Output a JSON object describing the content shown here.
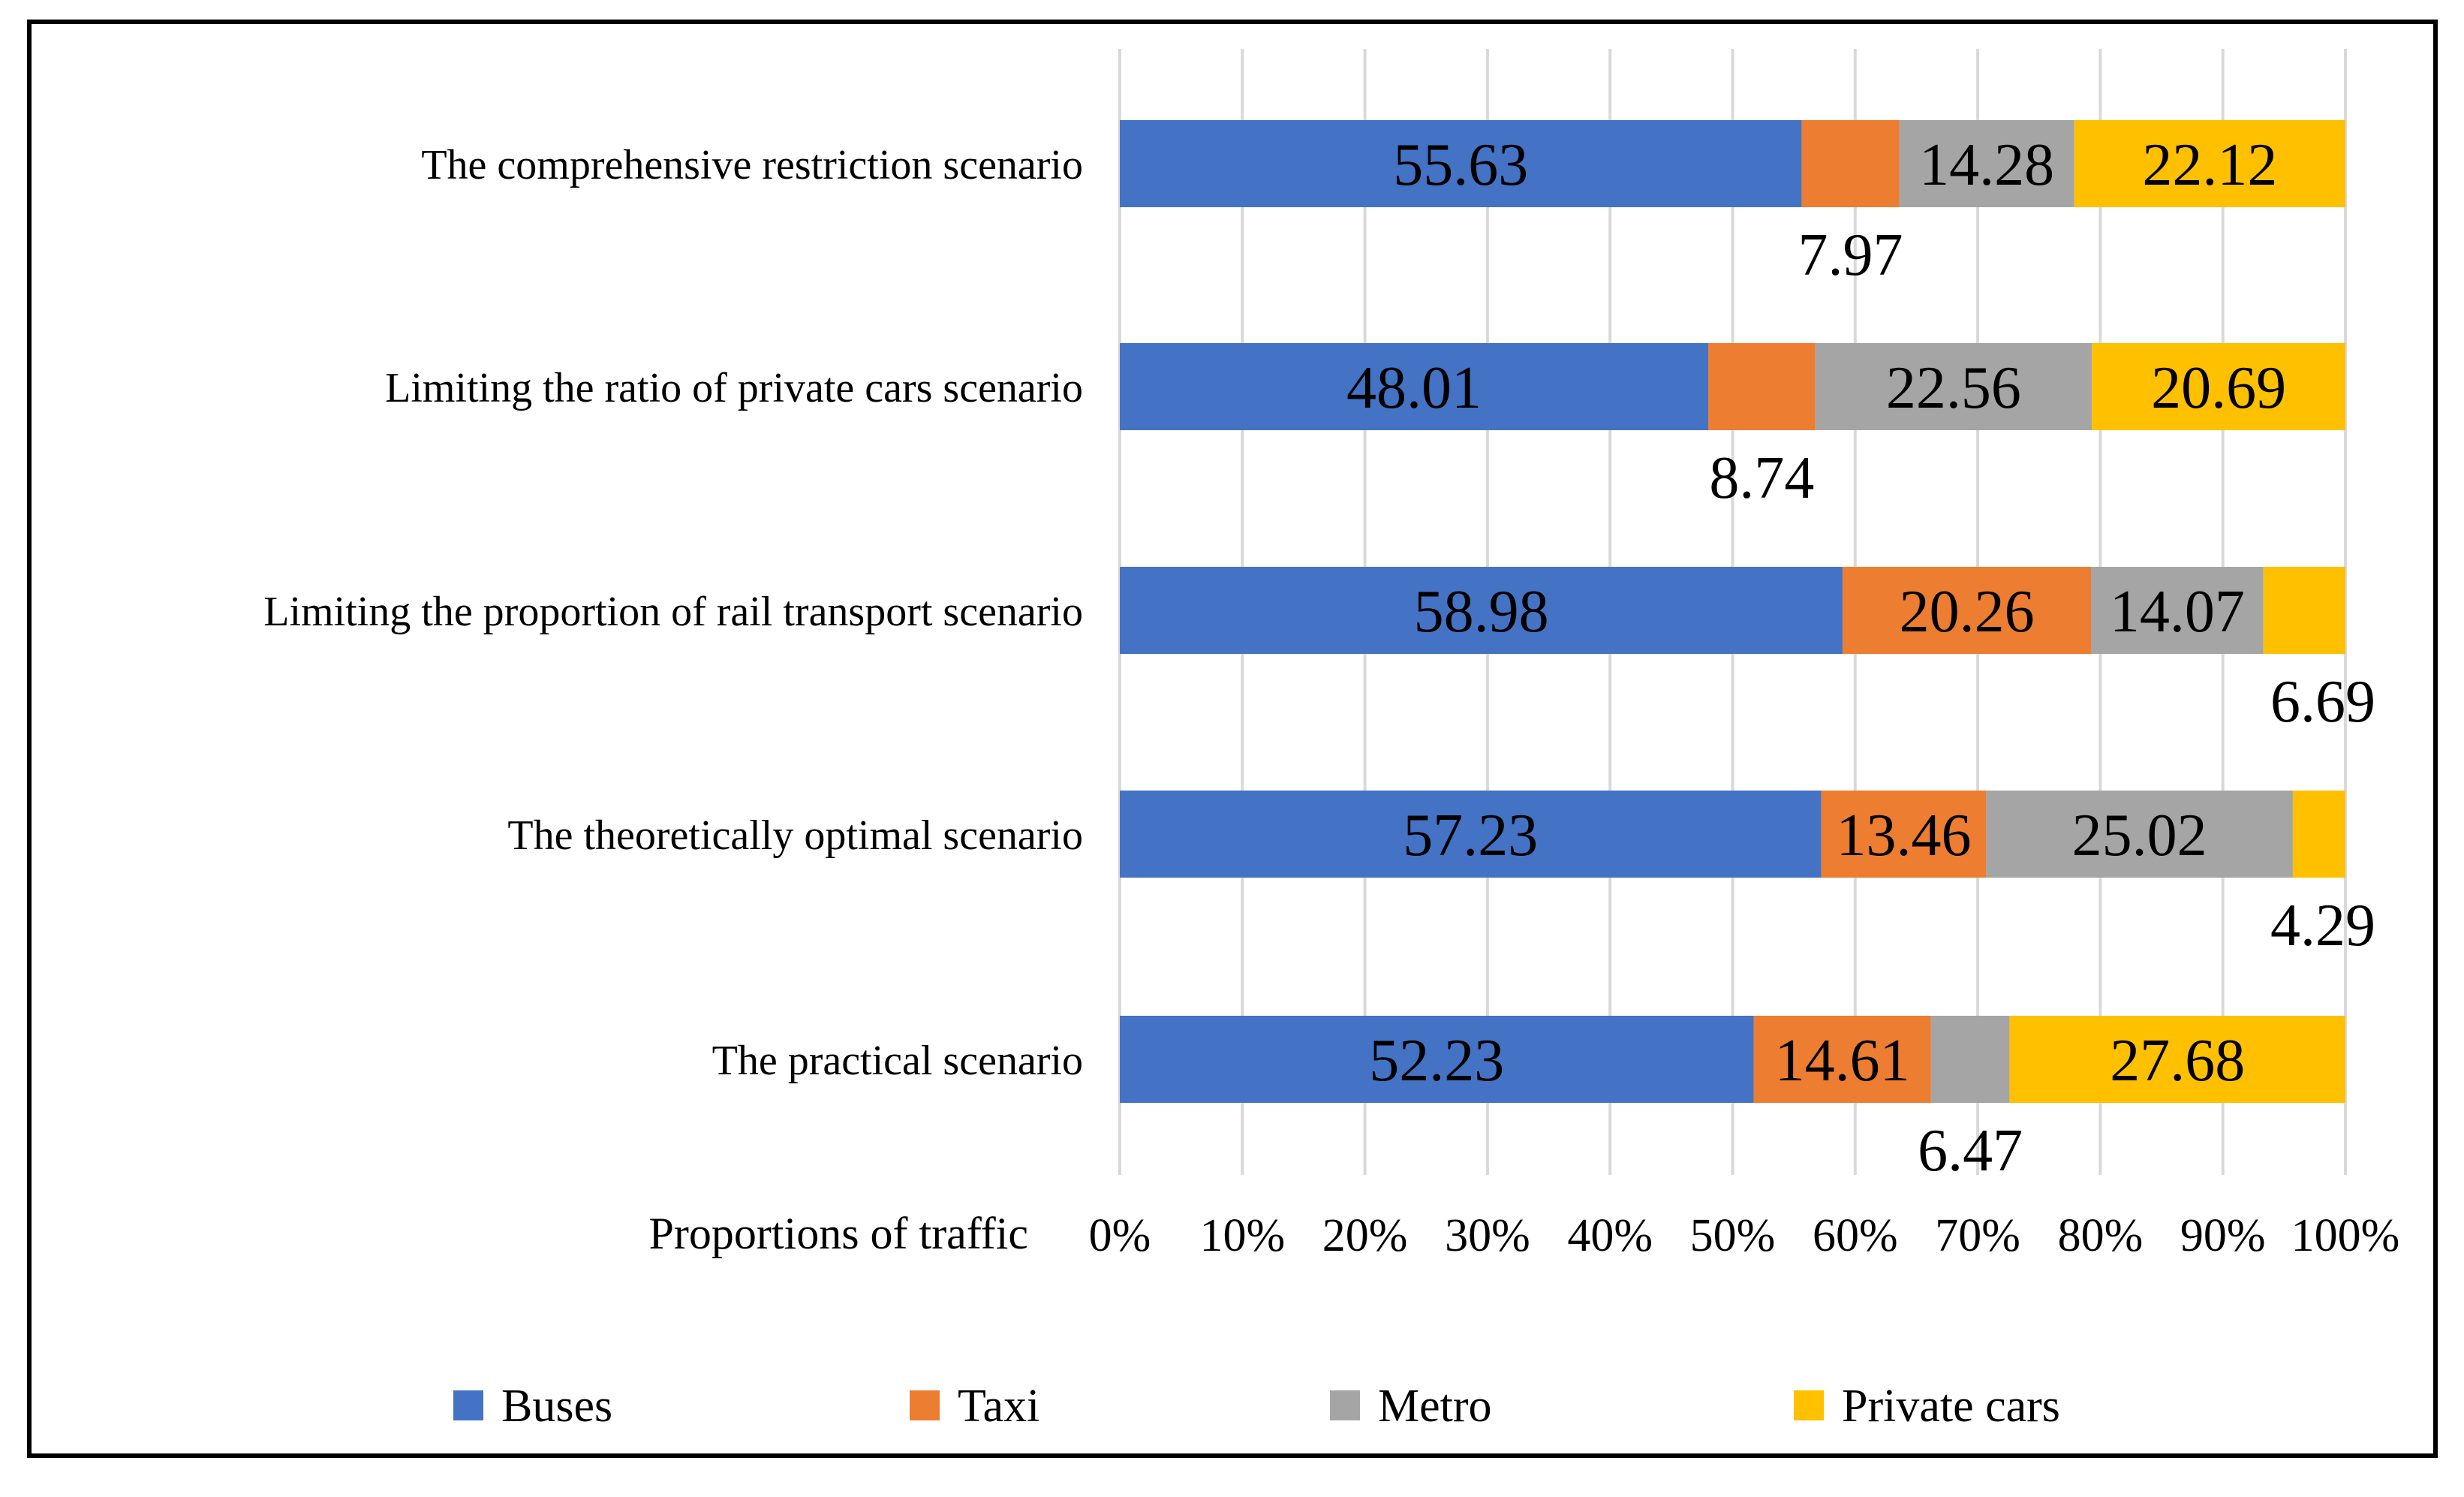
{
  "chart_data": {
    "type": "bar",
    "orientation": "horizontal",
    "stacked": "percent",
    "categories": [
      "The comprehensive restriction scenario",
      "Limiting the ratio of private cars scenario",
      "Limiting the proportion of rail transport  scenario",
      "The theoretically optimal scenario",
      "The practical scenario"
    ],
    "series": [
      {
        "name": "Buses",
        "color": "#4472C4",
        "values": [
          55.63,
          48.01,
          58.98,
          57.23,
          52.23
        ],
        "labels": [
          "55.63",
          "48.01",
          "58.98",
          "57.23",
          "52.23"
        ]
      },
      {
        "name": "Taxi",
        "color": "#ED7D31",
        "values": [
          7.97,
          8.74,
          20.26,
          13.46,
          14.61
        ],
        "labels": [
          "7.97",
          "8.74",
          "20.26",
          "13.46",
          "14.61"
        ]
      },
      {
        "name": "Metro",
        "color": "#A5A5A5",
        "values": [
          14.28,
          22.56,
          14.07,
          25.02,
          6.47
        ],
        "labels": [
          "14.28",
          "22.56",
          "14.07",
          "25.02",
          "6.47"
        ]
      },
      {
        "name": "Private cars",
        "color": "#FFC000",
        "values": [
          22.12,
          20.69,
          6.69,
          4.29,
          27.68
        ],
        "labels": [
          "22.12",
          "20.69",
          "6.69",
          "4.29",
          "27.68"
        ]
      }
    ],
    "xlim": [
      0,
      100
    ],
    "x_ticks": [
      "0%",
      "10%",
      "20%",
      "30%",
      "40%",
      "50%",
      "60%",
      "70%",
      "80%",
      "90%",
      "100%"
    ],
    "xlabel": "Proportions of traffic",
    "ylabel": "",
    "title": "",
    "grid": "vertical",
    "legend_position": "bottom"
  }
}
